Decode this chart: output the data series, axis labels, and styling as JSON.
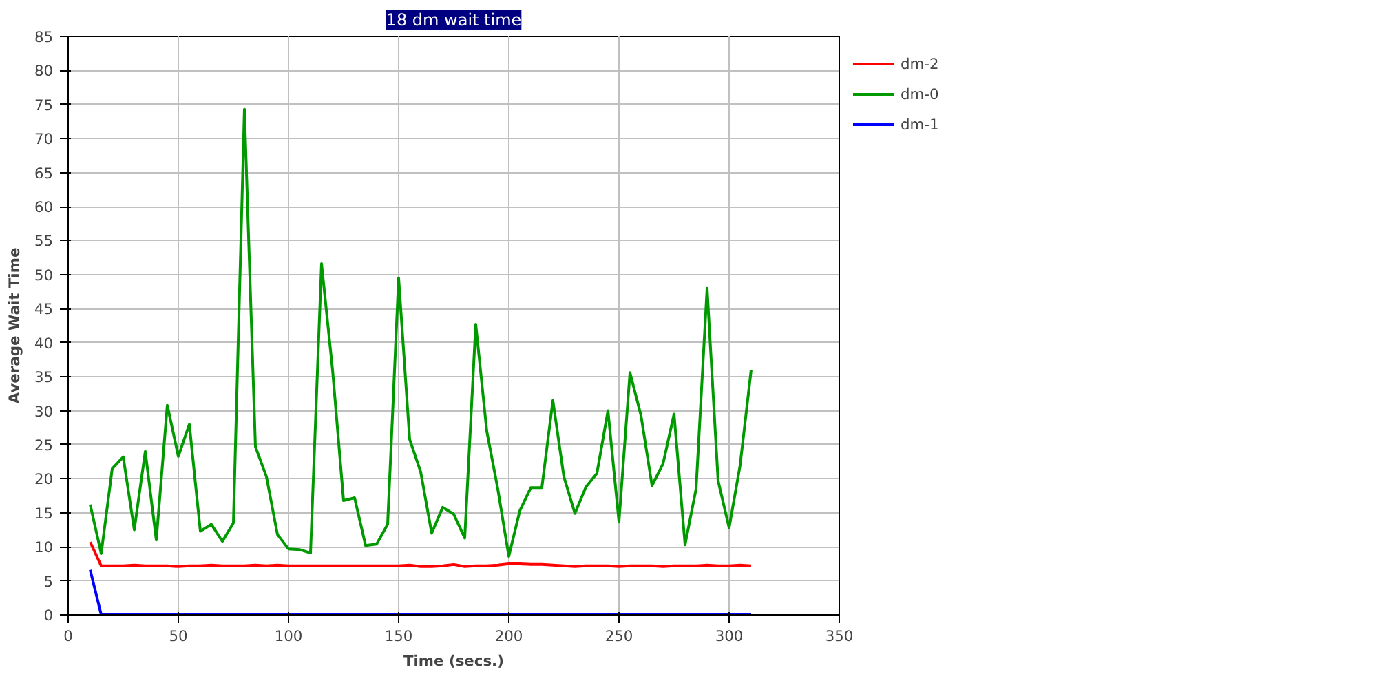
{
  "chart_data": {
    "type": "line",
    "title": "18 dm wait time",
    "xlabel": "Time (secs.)",
    "ylabel": "Average Wait Time",
    "xlim": [
      0,
      350
    ],
    "xticks": [
      0,
      50,
      100,
      150,
      200,
      250,
      300,
      350
    ],
    "ylim": [
      0,
      85
    ],
    "yticks": [
      0,
      5,
      10,
      15,
      20,
      25,
      30,
      35,
      40,
      45,
      50,
      55,
      60,
      65,
      70,
      75,
      80,
      85
    ],
    "grid": true,
    "legend": "top right",
    "marker": "none",
    "line_style": "solid",
    "x": [
      10,
      15,
      20,
      25,
      30,
      35,
      40,
      45,
      50,
      55,
      60,
      65,
      70,
      75,
      80,
      85,
      90,
      95,
      100,
      105,
      110,
      115,
      120,
      125,
      130,
      135,
      140,
      145,
      150,
      155,
      160,
      165,
      170,
      175,
      180,
      185,
      190,
      195,
      200,
      205,
      210,
      215,
      220,
      225,
      230,
      235,
      240,
      245,
      250,
      255,
      260,
      265,
      270,
      275,
      280,
      285,
      290,
      295,
      300,
      305,
      310
    ],
    "series": [
      {
        "name": "dm-2",
        "color": "#ff0000",
        "values": [
          10.7,
          7.2,
          7.2,
          7.2,
          7.3,
          7.2,
          7.2,
          7.2,
          7.1,
          7.2,
          7.2,
          7.3,
          7.2,
          7.2,
          7.2,
          7.3,
          7.2,
          7.3,
          7.2,
          7.2,
          7.2,
          7.2,
          7.2,
          7.2,
          7.2,
          7.2,
          7.2,
          7.2,
          7.2,
          7.3,
          7.1,
          7.1,
          7.2,
          7.4,
          7.1,
          7.2,
          7.2,
          7.3,
          7.5,
          7.5,
          7.4,
          7.4,
          7.3,
          7.2,
          7.1,
          7.2,
          7.2,
          7.2,
          7.1,
          7.2,
          7.2,
          7.2,
          7.1,
          7.2,
          7.2,
          7.2,
          7.3,
          7.2,
          7.2,
          7.3,
          7.2
        ]
      },
      {
        "name": "dm-0",
        "color": "#009900",
        "values": [
          16.2,
          9,
          21.5,
          23.2,
          12.5,
          24,
          11,
          30.8,
          23.3,
          28,
          12.3,
          13.3,
          10.8,
          13.5,
          74.3,
          24.7,
          20.3,
          11.8,
          9.7,
          9.6,
          9.1,
          51.6,
          36,
          16.8,
          17.2,
          10.2,
          10.4,
          13.3,
          49.5,
          25.8,
          21,
          12,
          15.8,
          14.8,
          11.3,
          42.7,
          27,
          18.5,
          8.6,
          15.3,
          18.7,
          18.7,
          31.5,
          20.3,
          14.9,
          18.8,
          20.8,
          30,
          13.7,
          35.6,
          29.3,
          19,
          22.2,
          29.5,
          10.3,
          18.5,
          48,
          19.7,
          12.8,
          22,
          36
        ]
      },
      {
        "name": "dm-1",
        "color": "#0000ff",
        "values": [
          6.6,
          0,
          0,
          0,
          0,
          0,
          0,
          0,
          0,
          0,
          0,
          0,
          0,
          0,
          0,
          0,
          0,
          0,
          0,
          0,
          0,
          0,
          0,
          0,
          0,
          0,
          0,
          0,
          0,
          0,
          0,
          0,
          0,
          0,
          0,
          0,
          0,
          0,
          0,
          0,
          0,
          0,
          0,
          0,
          0,
          0,
          0,
          0,
          0,
          0,
          0,
          0,
          0,
          0,
          0,
          0,
          0,
          0,
          0,
          0,
          0
        ]
      }
    ]
  }
}
